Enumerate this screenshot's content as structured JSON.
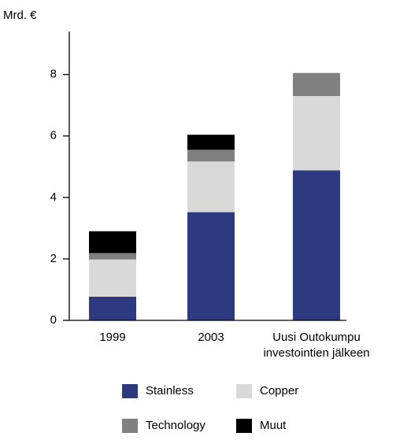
{
  "chart_data": {
    "type": "stacked_bar",
    "y_label": "Mrd. €",
    "categories": [
      "1999",
      "2003",
      "Uusi Outokumpu\ninvestointien jälkeen"
    ],
    "series": [
      {
        "name": "Stainless",
        "color": "#2e3a80",
        "values": [
          0.77,
          3.52,
          4.88
        ]
      },
      {
        "name": "Copper",
        "color": "#d9d9d9",
        "values": [
          1.21,
          1.65,
          2.42
        ]
      },
      {
        "name": "Technology",
        "color": "#808080",
        "values": [
          0.21,
          0.38,
          0.75
        ]
      },
      {
        "name": "Muut",
        "color": "#000000",
        "values": [
          0.71,
          0.49,
          0
        ]
      }
    ],
    "ylim": [
      0,
      9.4
    ],
    "yticks": [
      0,
      2,
      4,
      6,
      8
    ]
  }
}
